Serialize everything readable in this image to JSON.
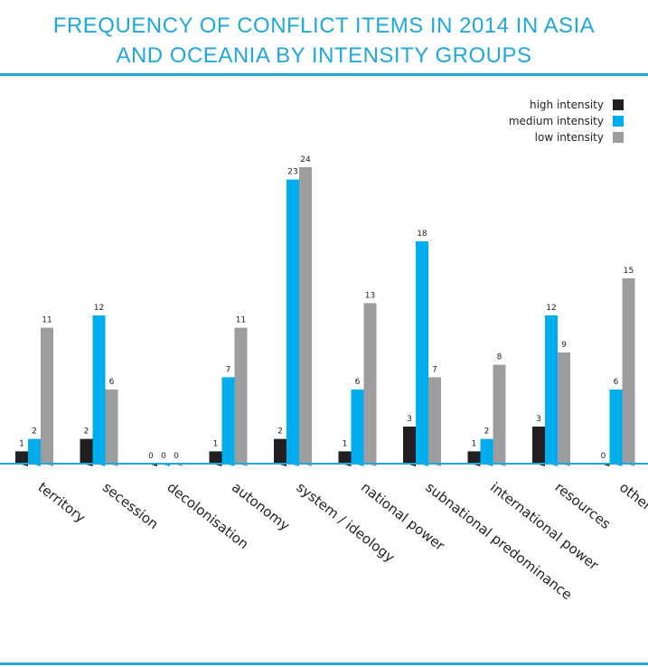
{
  "header": {
    "title_line1": "FREQUENCY OF CONFLICT ITEMS IN 2014 IN ASIA",
    "title_line2": "AND OCEANIA BY INTENSITY GROUPS"
  },
  "colors": {
    "accent": "#1ea8dc",
    "high": "#231f20",
    "medium": "#00aeef",
    "low": "#9d9d9d"
  },
  "chart_data": {
    "type": "bar",
    "title": "FREQUENCY OF CONFLICT ITEMS IN 2014 IN ASIA AND OCEANIA BY INTENSITY GROUPS",
    "categories": [
      "territory",
      "secession",
      "decolonisation",
      "autonomy",
      "system / ideology",
      "national power",
      "subnational predominance",
      "international power",
      "resources",
      "other"
    ],
    "series": [
      {
        "name": "high intensity",
        "color": "#231f20",
        "values": [
          1,
          2,
          0,
          1,
          2,
          1,
          3,
          1,
          3,
          0
        ]
      },
      {
        "name": "medium intensity",
        "color": "#00aeef",
        "values": [
          2,
          12,
          0,
          7,
          23,
          6,
          18,
          2,
          12,
          6
        ]
      },
      {
        "name": "low intensity",
        "color": "#9d9d9d",
        "values": [
          11,
          6,
          0,
          11,
          24,
          13,
          7,
          8,
          9,
          15
        ]
      }
    ],
    "ylim": [
      0,
      24
    ],
    "legend_position": "top-right",
    "grid": false
  }
}
